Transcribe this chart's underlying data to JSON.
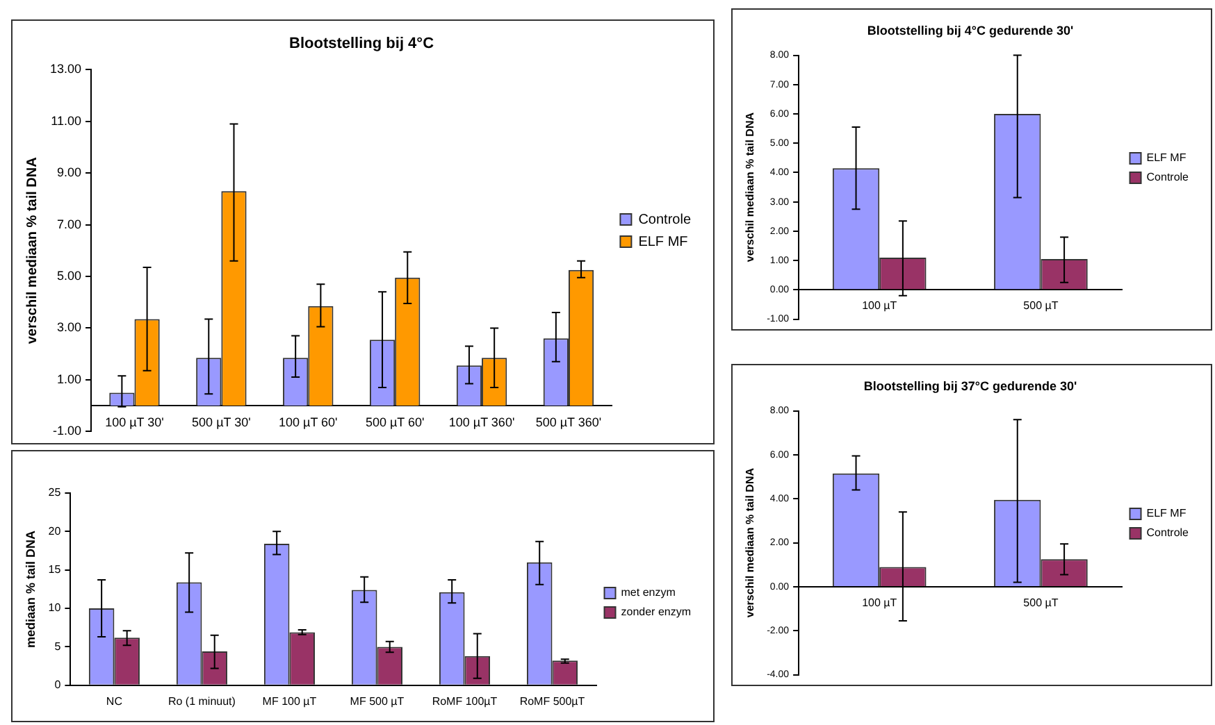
{
  "chart_data": [
    {
      "type": "bar",
      "title": "Blootstelling bij 4°C",
      "ylabel": "verschil mediaan % tail DNA",
      "categories": [
        "100 µT 30'",
        "500 µT 30'",
        "100 µT 60'",
        "500 µT 60'",
        "100 µT 360'",
        "500 µT 360'"
      ],
      "series": [
        {
          "name": "Controle",
          "color": "#9999ff",
          "values": [
            0.5,
            1.85,
            1.85,
            2.55,
            1.55,
            2.6
          ],
          "errors": [
            [
              -0.05,
              1.15
            ],
            [
              0.45,
              3.35
            ],
            [
              1.1,
              2.7
            ],
            [
              0.7,
              4.4
            ],
            [
              0.85,
              2.3
            ],
            [
              1.7,
              3.6
            ]
          ]
        },
        {
          "name": "ELF MF",
          "color": "#ff9900",
          "values": [
            3.35,
            8.3,
            3.85,
            4.95,
            1.85,
            5.25
          ],
          "errors": [
            [
              1.35,
              5.35
            ],
            [
              5.6,
              10.9
            ],
            [
              3.05,
              4.7
            ],
            [
              3.95,
              5.95
            ],
            [
              0.7,
              3.0
            ],
            [
              4.95,
              5.6
            ]
          ]
        }
      ],
      "ylim": [
        -1,
        13
      ],
      "yticks": [
        {
          "value": -1,
          "label": "-1.00"
        },
        {
          "value": 1,
          "label": "1.00"
        },
        {
          "value": 3,
          "label": "3.00"
        },
        {
          "value": 5,
          "label": "5.00"
        },
        {
          "value": 7,
          "label": "7.00"
        },
        {
          "value": 9,
          "label": "9.00"
        },
        {
          "value": 11,
          "label": "11.00"
        },
        {
          "value": 13,
          "label": "13.00"
        }
      ],
      "grid": false,
      "legend": "right"
    },
    {
      "type": "bar",
      "ylabel": "mediaan % tail DNA",
      "categories": [
        "NC",
        "Ro (1 minuut)",
        "MF 100 µT",
        "MF 500 µT",
        "RoMF 100µT",
        "RoMF 500µT"
      ],
      "series": [
        {
          "name": "met enzym",
          "color": "#9999ff",
          "values": [
            10,
            13.4,
            18.4,
            12.4,
            12.1,
            16
          ],
          "errors": [
            [
              6.3,
              13.7
            ],
            [
              9.5,
              17.2
            ],
            [
              17,
              20
            ],
            [
              10.8,
              14.1
            ],
            [
              10.7,
              13.7
            ],
            [
              13.1,
              18.7
            ]
          ]
        },
        {
          "name": "zonder enzym",
          "color": "#993366",
          "values": [
            6.2,
            4.4,
            6.9,
            5,
            3.8,
            3.2
          ],
          "errors": [
            [
              5.2,
              7.1
            ],
            [
              2.2,
              6.5
            ],
            [
              6.6,
              7.2
            ],
            [
              4.3,
              5.7
            ],
            [
              0.9,
              6.7
            ],
            [
              2.9,
              3.4
            ]
          ]
        }
      ],
      "ylim": [
        0,
        25
      ],
      "yticks": [
        0,
        5,
        10,
        15,
        20,
        25
      ],
      "grid": false,
      "legend": "right"
    },
    {
      "type": "bar",
      "title": "Blootstelling bij 4°C gedurende 30'",
      "ylabel": "verschil mediaan % tail DNA",
      "categories": [
        "100 µT",
        "500 µT"
      ],
      "series": [
        {
          "name": "ELF MF",
          "color": "#9999ff",
          "values": [
            4.15,
            6.0
          ],
          "errors": [
            [
              2.75,
              5.55
            ],
            [
              3.15,
              8.0
            ]
          ]
        },
        {
          "name": "Controle",
          "color": "#993366",
          "values": [
            1.1,
            1.05
          ],
          "errors": [
            [
              -0.2,
              2.35
            ],
            [
              0.25,
              1.8
            ]
          ]
        }
      ],
      "ylim": [
        -1,
        8
      ],
      "yticks": [
        {
          "value": -1,
          "label": "-1.00"
        },
        {
          "value": 0,
          "label": "0.00"
        },
        {
          "value": 1,
          "label": "1.00"
        },
        {
          "value": 2,
          "label": "2.00"
        },
        {
          "value": 3,
          "label": "3.00"
        },
        {
          "value": 4,
          "label": "4.00"
        },
        {
          "value": 5,
          "label": "5.00"
        },
        {
          "value": 6,
          "label": "6.00"
        },
        {
          "value": 7,
          "label": "7.00"
        },
        {
          "value": 8,
          "label": "8.00"
        }
      ],
      "grid": false,
      "legend": "right"
    },
    {
      "type": "bar",
      "title": "Blootstelling bij 37°C gedurende 30'",
      "ylabel": "verschil mediaan % tail DNA",
      "categories": [
        "100 µT",
        "500 µT"
      ],
      "series": [
        {
          "name": "ELF MF",
          "color": "#9999ff",
          "values": [
            5.15,
            3.95
          ],
          "errors": [
            [
              4.4,
              5.95
            ],
            [
              0.2,
              7.6
            ]
          ]
        },
        {
          "name": "Controle",
          "color": "#993366",
          "values": [
            0.9,
            1.25
          ],
          "errors": [
            [
              -1.55,
              3.4
            ],
            [
              0.55,
              1.95
            ]
          ]
        }
      ],
      "ylim": [
        -4,
        8
      ],
      "yticks": [
        {
          "value": -4,
          "label": "-4.00"
        },
        {
          "value": -2,
          "label": "-2.00"
        },
        {
          "value": 0,
          "label": "0.00"
        },
        {
          "value": 2,
          "label": "2.00"
        },
        {
          "value": 4,
          "label": "4.00"
        },
        {
          "value": 6,
          "label": "6.00"
        },
        {
          "value": 8,
          "label": "8.00"
        }
      ],
      "grid": false,
      "legend": "right"
    }
  ]
}
